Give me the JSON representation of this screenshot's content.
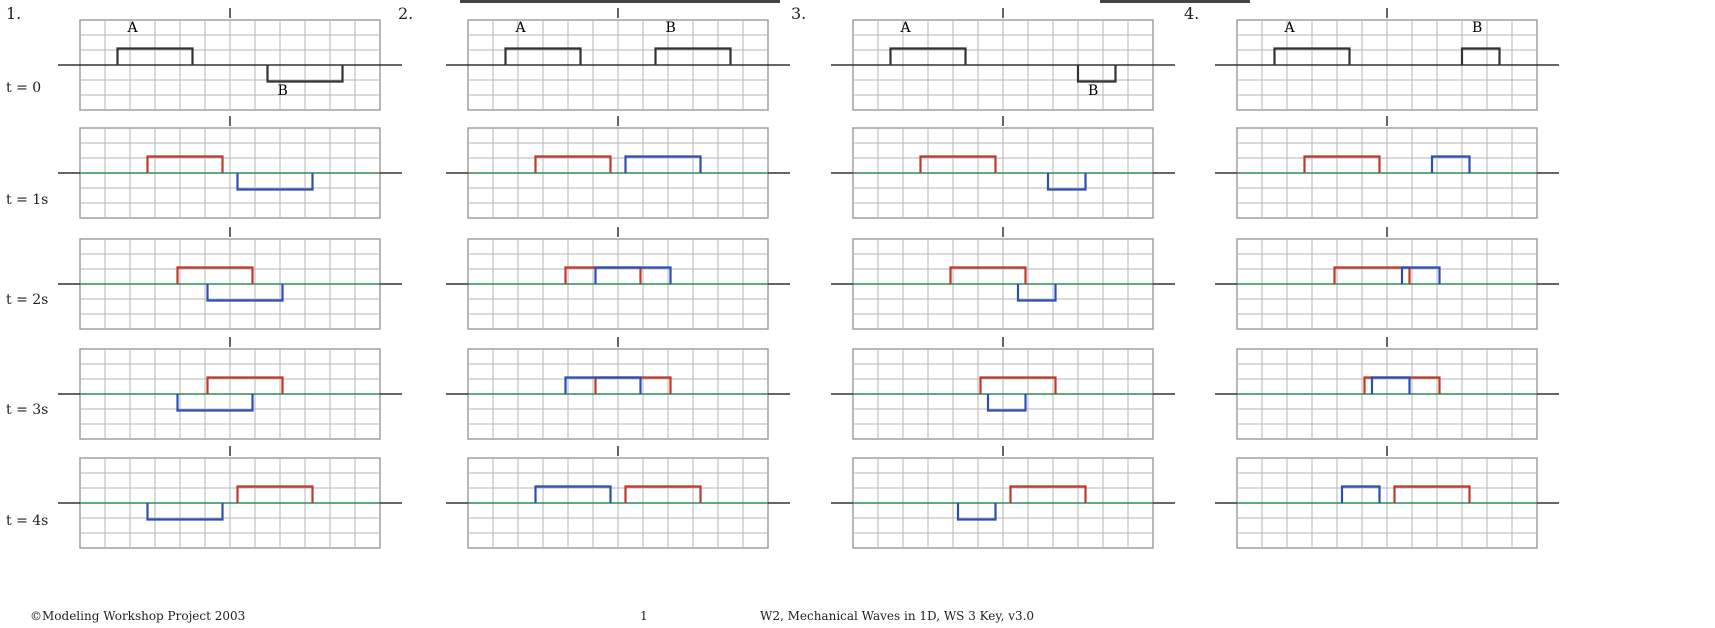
{
  "column_numbers": [
    "1.",
    "2.",
    "3.",
    "4."
  ],
  "row_labels": [
    "t = 0",
    "t = 1s",
    "t = 2s",
    "t = 3s",
    "t = 4s"
  ],
  "pulse_labels": {
    "a": "A",
    "b": "B"
  },
  "footer": {
    "left": "©Modeling Workshop Project 2003",
    "page": "1",
    "right": "W2, Mechanical Waves in 1D, WS 3 Key, v3.0"
  },
  "colors": {
    "grid": "#b5b5b5",
    "border": "#999999",
    "pulse_a": "#c0392b",
    "pulse_b": "#2c4fb5",
    "sum": "#2e8b57",
    "overlap": "#7a2fa0",
    "initial": "#333333"
  },
  "scenarios": [
    {
      "id": 1,
      "a": {
        "pos": 0,
        "h": 1,
        "w": 2
      },
      "b": {
        "pos": 6,
        "h": -1,
        "w": 2
      }
    },
    {
      "id": 2,
      "a": {
        "pos": 0,
        "h": 1,
        "w": 2
      },
      "b": {
        "pos": 6,
        "h": 1,
        "w": 2
      }
    },
    {
      "id": 3,
      "a": {
        "pos": 0,
        "h": 1,
        "w": 2
      },
      "b": {
        "pos": 6,
        "h": -1,
        "w": 1
      }
    },
    {
      "id": 4,
      "a": {
        "pos": 0,
        "h": 1,
        "w": 2
      },
      "b": {
        "pos": 6,
        "h": 1,
        "w": 1
      }
    }
  ]
}
